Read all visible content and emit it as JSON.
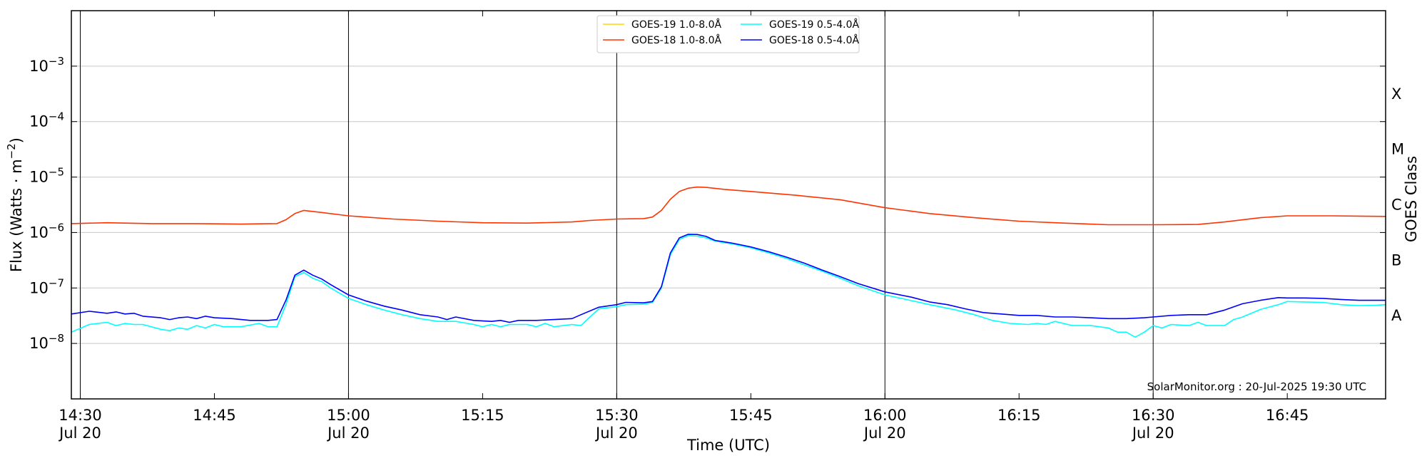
{
  "chart_data": {
    "type": "line",
    "title": "",
    "xlabel": "Time (UTC)",
    "ylabel": "Flux (Watts · m⁻²)",
    "ylabel_right": "GOES Class",
    "yscale": "log",
    "ylim": [
      1e-09,
      0.01
    ],
    "xlim": [
      "14:29",
      "16:56"
    ],
    "grid": "horizontal",
    "legend_position": "top-center",
    "credit": "SolarMonitor.org : 20-Jul-2025 19:30 UTC",
    "x_ticks": [
      {
        "time": "14:30",
        "label": "14:30",
        "date": "Jul 20"
      },
      {
        "time": "14:45",
        "label": "14:45",
        "date": ""
      },
      {
        "time": "15:00",
        "label": "15:00",
        "date": "Jul 20"
      },
      {
        "time": "15:15",
        "label": "15:15",
        "date": ""
      },
      {
        "time": "15:30",
        "label": "15:30",
        "date": "Jul 20"
      },
      {
        "time": "15:45",
        "label": "15:45",
        "date": ""
      },
      {
        "time": "16:00",
        "label": "16:00",
        "date": "Jul 20"
      },
      {
        "time": "16:15",
        "label": "16:15",
        "date": ""
      },
      {
        "time": "16:30",
        "label": "16:30",
        "date": "Jul 20"
      },
      {
        "time": "16:45",
        "label": "16:45",
        "date": ""
      }
    ],
    "vlines": [
      "14:30",
      "15:00",
      "15:30",
      "16:00",
      "16:30"
    ],
    "y_ticks": [
      {
        "value": 1e-08,
        "exp": "−8"
      },
      {
        "value": 1e-07,
        "exp": "−7"
      },
      {
        "value": 1e-06,
        "exp": "−6"
      },
      {
        "value": 1e-05,
        "exp": "−5"
      },
      {
        "value": 0.0001,
        "exp": "−4"
      },
      {
        "value": 0.001,
        "exp": "−3"
      }
    ],
    "goes_classes": [
      {
        "label": "A",
        "value": 3.16e-08
      },
      {
        "label": "B",
        "value": 3.16e-07
      },
      {
        "label": "C",
        "value": 3.16e-06
      },
      {
        "label": "M",
        "value": 3.16e-05
      },
      {
        "label": "X",
        "value": 0.000316
      }
    ],
    "series": [
      {
        "name": "GOES-19 1.0-8.0Å",
        "color": "#FFD700",
        "points": []
      },
      {
        "name": "GOES-19 0.5-4.0Å",
        "color": "#00FFFF",
        "points": [
          [
            "14:29",
            1.6e-08
          ],
          [
            "14:31",
            2.2e-08
          ],
          [
            "14:33",
            2.4e-08
          ],
          [
            "14:34",
            2.1e-08
          ],
          [
            "14:35",
            2.3e-08
          ],
          [
            "14:36",
            2.2e-08
          ],
          [
            "14:37",
            2.2e-08
          ],
          [
            "14:39",
            1.8e-08
          ],
          [
            "14:40",
            1.7e-08
          ],
          [
            "14:41",
            1.9e-08
          ],
          [
            "14:42",
            1.8e-08
          ],
          [
            "14:43",
            2.1e-08
          ],
          [
            "14:44",
            1.9e-08
          ],
          [
            "14:45",
            2.2e-08
          ],
          [
            "14:46",
            2e-08
          ],
          [
            "14:48",
            2e-08
          ],
          [
            "14:50",
            2.3e-08
          ],
          [
            "14:51",
            2e-08
          ],
          [
            "14:52",
            2e-08
          ],
          [
            "14:53",
            5e-08
          ],
          [
            "14:54",
            1.6e-07
          ],
          [
            "14:55",
            1.9e-07
          ],
          [
            "14:56",
            1.5e-07
          ],
          [
            "14:57",
            1.3e-07
          ],
          [
            "14:58",
            1e-07
          ],
          [
            "15:00",
            6.5e-08
          ],
          [
            "15:02",
            5e-08
          ],
          [
            "15:04",
            4e-08
          ],
          [
            "15:06",
            3.3e-08
          ],
          [
            "15:08",
            2.8e-08
          ],
          [
            "15:10",
            2.5e-08
          ],
          [
            "15:12",
            2.5e-08
          ],
          [
            "15:14",
            2.2e-08
          ],
          [
            "15:15",
            2e-08
          ],
          [
            "15:16",
            2.2e-08
          ],
          [
            "15:17",
            2e-08
          ],
          [
            "15:18",
            2.2e-08
          ],
          [
            "15:20",
            2.2e-08
          ],
          [
            "15:21",
            2e-08
          ],
          [
            "15:22",
            2.3e-08
          ],
          [
            "15:23",
            2e-08
          ],
          [
            "15:25",
            2.2e-08
          ],
          [
            "15:26",
            2.1e-08
          ],
          [
            "15:27",
            3e-08
          ],
          [
            "15:28",
            4.2e-08
          ],
          [
            "15:30",
            4.6e-08
          ],
          [
            "15:31",
            5e-08
          ],
          [
            "15:33",
            5.1e-08
          ],
          [
            "15:34",
            5.5e-08
          ],
          [
            "15:35",
            1e-07
          ],
          [
            "15:36",
            4e-07
          ],
          [
            "15:37",
            7.5e-07
          ],
          [
            "15:38",
            8.8e-07
          ],
          [
            "15:39",
            8.6e-07
          ],
          [
            "15:40",
            8e-07
          ],
          [
            "15:41",
            7e-07
          ],
          [
            "15:43",
            6.2e-07
          ],
          [
            "15:45",
            5.3e-07
          ],
          [
            "15:47",
            4.3e-07
          ],
          [
            "15:49",
            3.4e-07
          ],
          [
            "15:51",
            2.6e-07
          ],
          [
            "15:53",
            2e-07
          ],
          [
            "15:55",
            1.5e-07
          ],
          [
            "15:57",
            1.1e-07
          ],
          [
            "16:00",
            7.5e-08
          ],
          [
            "16:03",
            5.9e-08
          ],
          [
            "16:05",
            5e-08
          ],
          [
            "16:08",
            4e-08
          ],
          [
            "16:10",
            3.3e-08
          ],
          [
            "16:12",
            2.6e-08
          ],
          [
            "16:14",
            2.3e-08
          ],
          [
            "16:16",
            2.2e-08
          ],
          [
            "16:17",
            2.3e-08
          ],
          [
            "16:18",
            2.2e-08
          ],
          [
            "16:19",
            2.5e-08
          ],
          [
            "16:21",
            2.1e-08
          ],
          [
            "16:23",
            2.1e-08
          ],
          [
            "16:25",
            1.9e-08
          ],
          [
            "16:26",
            1.6e-08
          ],
          [
            "16:27",
            1.6e-08
          ],
          [
            "16:28",
            1.3e-08
          ],
          [
            "16:29",
            1.6e-08
          ],
          [
            "16:30",
            2.1e-08
          ],
          [
            "16:31",
            1.9e-08
          ],
          [
            "16:32",
            2.2e-08
          ],
          [
            "16:34",
            2.1e-08
          ],
          [
            "16:35",
            2.4e-08
          ],
          [
            "16:36",
            2.1e-08
          ],
          [
            "16:38",
            2.1e-08
          ],
          [
            "16:39",
            2.7e-08
          ],
          [
            "16:40",
            3e-08
          ],
          [
            "16:42",
            4.1e-08
          ],
          [
            "16:44",
            5e-08
          ],
          [
            "16:45",
            5.7e-08
          ],
          [
            "16:47",
            5.6e-08
          ],
          [
            "16:49",
            5.5e-08
          ],
          [
            "16:51",
            5e-08
          ],
          [
            "16:53",
            4.8e-08
          ],
          [
            "16:55",
            4.9e-08
          ],
          [
            "16:56",
            5e-08
          ]
        ]
      },
      {
        "name": "GOES-18 1.0-8.0Å",
        "color": "#FF3300",
        "points": [
          [
            "14:29",
            1.45e-06
          ],
          [
            "14:33",
            1.5e-06
          ],
          [
            "14:38",
            1.45e-06
          ],
          [
            "14:43",
            1.45e-06
          ],
          [
            "14:48",
            1.42e-06
          ],
          [
            "14:52",
            1.45e-06
          ],
          [
            "14:53",
            1.7e-06
          ],
          [
            "14:54",
            2.2e-06
          ],
          [
            "14:55",
            2.5e-06
          ],
          [
            "14:57",
            2.3e-06
          ],
          [
            "15:00",
            2e-06
          ],
          [
            "15:05",
            1.75e-06
          ],
          [
            "15:10",
            1.6e-06
          ],
          [
            "15:15",
            1.5e-06
          ],
          [
            "15:20",
            1.48e-06
          ],
          [
            "15:25",
            1.55e-06
          ],
          [
            "15:27",
            1.65e-06
          ],
          [
            "15:30",
            1.75e-06
          ],
          [
            "15:33",
            1.78e-06
          ],
          [
            "15:34",
            1.9e-06
          ],
          [
            "15:35",
            2.5e-06
          ],
          [
            "15:36",
            4e-06
          ],
          [
            "15:37",
            5.5e-06
          ],
          [
            "15:38",
            6.3e-06
          ],
          [
            "15:39",
            6.6e-06
          ],
          [
            "15:40",
            6.5e-06
          ],
          [
            "15:42",
            6e-06
          ],
          [
            "15:45",
            5.5e-06
          ],
          [
            "15:50",
            4.7e-06
          ],
          [
            "15:55",
            3.9e-06
          ],
          [
            "16:00",
            2.8e-06
          ],
          [
            "16:05",
            2.2e-06
          ],
          [
            "16:10",
            1.85e-06
          ],
          [
            "16:15",
            1.6e-06
          ],
          [
            "16:20",
            1.48e-06
          ],
          [
            "16:25",
            1.38e-06
          ],
          [
            "16:30",
            1.38e-06
          ],
          [
            "16:35",
            1.4e-06
          ],
          [
            "16:38",
            1.55e-06
          ],
          [
            "16:42",
            1.85e-06
          ],
          [
            "16:45",
            2e-06
          ],
          [
            "16:50",
            2e-06
          ],
          [
            "16:56",
            1.95e-06
          ]
        ]
      },
      {
        "name": "GOES-18 0.5-4.0Å",
        "color": "#0000FF",
        "points": [
          [
            "14:29",
            3.4e-08
          ],
          [
            "14:31",
            3.8e-08
          ],
          [
            "14:33",
            3.5e-08
          ],
          [
            "14:34",
            3.7e-08
          ],
          [
            "14:35",
            3.4e-08
          ],
          [
            "14:36",
            3.5e-08
          ],
          [
            "14:37",
            3.1e-08
          ],
          [
            "14:39",
            2.9e-08
          ],
          [
            "14:40",
            2.7e-08
          ],
          [
            "14:41",
            2.9e-08
          ],
          [
            "14:42",
            3e-08
          ],
          [
            "14:43",
            2.8e-08
          ],
          [
            "14:44",
            3.1e-08
          ],
          [
            "14:45",
            2.9e-08
          ],
          [
            "14:47",
            2.8e-08
          ],
          [
            "14:49",
            2.6e-08
          ],
          [
            "14:51",
            2.6e-08
          ],
          [
            "14:52",
            2.7e-08
          ],
          [
            "14:53",
            6e-08
          ],
          [
            "14:54",
            1.7e-07
          ],
          [
            "14:55",
            2.1e-07
          ],
          [
            "14:56",
            1.7e-07
          ],
          [
            "14:57",
            1.45e-07
          ],
          [
            "14:58",
            1.15e-07
          ],
          [
            "15:00",
            7.5e-08
          ],
          [
            "15:02",
            5.8e-08
          ],
          [
            "15:04",
            4.7e-08
          ],
          [
            "15:06",
            4e-08
          ],
          [
            "15:08",
            3.3e-08
          ],
          [
            "15:10",
            3e-08
          ],
          [
            "15:11",
            2.7e-08
          ],
          [
            "15:12",
            3e-08
          ],
          [
            "15:14",
            2.6e-08
          ],
          [
            "15:16",
            2.5e-08
          ],
          [
            "15:17",
            2.6e-08
          ],
          [
            "15:18",
            2.4e-08
          ],
          [
            "15:19",
            2.6e-08
          ],
          [
            "15:21",
            2.6e-08
          ],
          [
            "15:23",
            2.7e-08
          ],
          [
            "15:25",
            2.8e-08
          ],
          [
            "15:26",
            3.3e-08
          ],
          [
            "15:28",
            4.5e-08
          ],
          [
            "15:30",
            5e-08
          ],
          [
            "15:31",
            5.5e-08
          ],
          [
            "15:33",
            5.4e-08
          ],
          [
            "15:34",
            5.7e-08
          ],
          [
            "15:35",
            1.05e-07
          ],
          [
            "15:36",
            4.3e-07
          ],
          [
            "15:37",
            8e-07
          ],
          [
            "15:38",
            9.3e-07
          ],
          [
            "15:39",
            9.2e-07
          ],
          [
            "15:40",
            8.5e-07
          ],
          [
            "15:41",
            7.2e-07
          ],
          [
            "15:43",
            6.4e-07
          ],
          [
            "15:45",
            5.5e-07
          ],
          [
            "15:47",
            4.5e-07
          ],
          [
            "15:49",
            3.6e-07
          ],
          [
            "15:51",
            2.8e-07
          ],
          [
            "15:53",
            2.1e-07
          ],
          [
            "15:55",
            1.6e-07
          ],
          [
            "15:57",
            1.2e-07
          ],
          [
            "16:00",
            8.5e-08
          ],
          [
            "16:03",
            6.8e-08
          ],
          [
            "16:05",
            5.6e-08
          ],
          [
            "16:07",
            5e-08
          ],
          [
            "16:09",
            4.2e-08
          ],
          [
            "16:11",
            3.6e-08
          ],
          [
            "16:13",
            3.4e-08
          ],
          [
            "16:15",
            3.2e-08
          ],
          [
            "16:17",
            3.2e-08
          ],
          [
            "16:19",
            3e-08
          ],
          [
            "16:21",
            3e-08
          ],
          [
            "16:23",
            2.9e-08
          ],
          [
            "16:25",
            2.8e-08
          ],
          [
            "16:27",
            2.8e-08
          ],
          [
            "16:29",
            2.9e-08
          ],
          [
            "16:30",
            3e-08
          ],
          [
            "16:32",
            3.2e-08
          ],
          [
            "16:34",
            3.3e-08
          ],
          [
            "16:36",
            3.3e-08
          ],
          [
            "16:38",
            4e-08
          ],
          [
            "16:40",
            5.2e-08
          ],
          [
            "16:42",
            6e-08
          ],
          [
            "16:44",
            6.7e-08
          ],
          [
            "16:45",
            6.6e-08
          ],
          [
            "16:47",
            6.6e-08
          ],
          [
            "16:49",
            6.5e-08
          ],
          [
            "16:51",
            6.2e-08
          ],
          [
            "16:53",
            6e-08
          ],
          [
            "16:56",
            6e-08
          ]
        ]
      }
    ]
  }
}
